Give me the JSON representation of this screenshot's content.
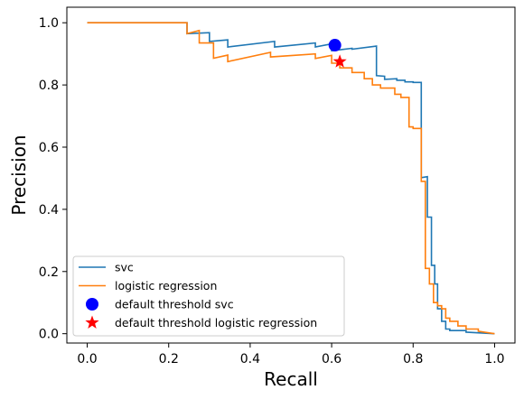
{
  "chart_data": {
    "type": "line",
    "title": "",
    "xlabel": "Recall",
    "ylabel": "Precision",
    "xlim": [
      -0.05,
      1.05
    ],
    "ylim": [
      -0.03,
      1.05
    ],
    "xticks": [
      0.0,
      0.2,
      0.4,
      0.6,
      0.8,
      1.0
    ],
    "yticks": [
      0.0,
      0.2,
      0.4,
      0.6,
      0.8,
      1.0
    ],
    "xtick_labels": [
      "0.0",
      "0.2",
      "0.4",
      "0.6",
      "0.8",
      "1.0"
    ],
    "ytick_labels": [
      "0.0",
      "0.2",
      "0.4",
      "0.6",
      "0.8",
      "1.0"
    ],
    "grid": false,
    "legend_position": "lower-left",
    "series": [
      {
        "name": "svc",
        "color": "#1f77b4",
        "style": "line",
        "x": [
          0.0,
          0.245,
          0.245,
          0.3,
          0.3,
          0.345,
          0.345,
          0.46,
          0.46,
          0.56,
          0.56,
          0.6,
          0.6,
          0.65,
          0.65,
          0.71,
          0.71,
          0.73,
          0.73,
          0.76,
          0.76,
          0.78,
          0.78,
          0.8,
          0.8,
          0.82,
          0.82,
          0.835,
          0.835,
          0.845,
          0.845,
          0.853,
          0.853,
          0.86,
          0.86,
          0.87,
          0.87,
          0.88,
          0.88,
          0.89,
          0.89,
          0.93,
          0.93,
          1.0
        ],
        "y": [
          1.0,
          1.0,
          0.965,
          0.968,
          0.94,
          0.945,
          0.922,
          0.94,
          0.922,
          0.935,
          0.922,
          0.932,
          0.91,
          0.918,
          0.915,
          0.925,
          0.83,
          0.828,
          0.818,
          0.82,
          0.815,
          0.815,
          0.81,
          0.81,
          0.808,
          0.808,
          0.502,
          0.505,
          0.375,
          0.375,
          0.22,
          0.22,
          0.16,
          0.16,
          0.08,
          0.08,
          0.04,
          0.04,
          0.015,
          0.015,
          0.01,
          0.01,
          0.005,
          0.0
        ]
      },
      {
        "name": "logistic regression",
        "color": "#ff7f0e",
        "style": "line",
        "x": [
          0.0,
          0.245,
          0.245,
          0.275,
          0.275,
          0.31,
          0.31,
          0.345,
          0.345,
          0.45,
          0.45,
          0.56,
          0.56,
          0.6,
          0.6,
          0.62,
          0.62,
          0.65,
          0.65,
          0.68,
          0.68,
          0.7,
          0.7,
          0.72,
          0.72,
          0.755,
          0.755,
          0.77,
          0.77,
          0.79,
          0.79,
          0.8,
          0.8,
          0.82,
          0.82,
          0.83,
          0.83,
          0.84,
          0.84,
          0.85,
          0.85,
          0.86,
          0.86,
          0.87,
          0.87,
          0.88,
          0.88,
          0.89,
          0.89,
          0.91,
          0.91,
          0.93,
          0.93,
          0.96,
          0.96,
          1.0
        ],
        "y": [
          1.0,
          1.0,
          0.965,
          0.975,
          0.935,
          0.935,
          0.886,
          0.896,
          0.875,
          0.905,
          0.89,
          0.9,
          0.885,
          0.895,
          0.87,
          0.87,
          0.855,
          0.855,
          0.84,
          0.84,
          0.82,
          0.82,
          0.8,
          0.8,
          0.79,
          0.79,
          0.77,
          0.77,
          0.76,
          0.76,
          0.665,
          0.665,
          0.66,
          0.66,
          0.49,
          0.49,
          0.21,
          0.21,
          0.16,
          0.16,
          0.1,
          0.1,
          0.09,
          0.09,
          0.08,
          0.08,
          0.05,
          0.05,
          0.04,
          0.04,
          0.025,
          0.025,
          0.015,
          0.015,
          0.008,
          0.0
        ]
      },
      {
        "name": "default threshold svc",
        "color": "#0000ff",
        "style": "marker-circle",
        "x": [
          0.608
        ],
        "y": [
          0.928
        ]
      },
      {
        "name": "default threshold logistic regression",
        "color": "#ff0000",
        "style": "marker-star",
        "x": [
          0.62
        ],
        "y": [
          0.875
        ]
      }
    ]
  }
}
